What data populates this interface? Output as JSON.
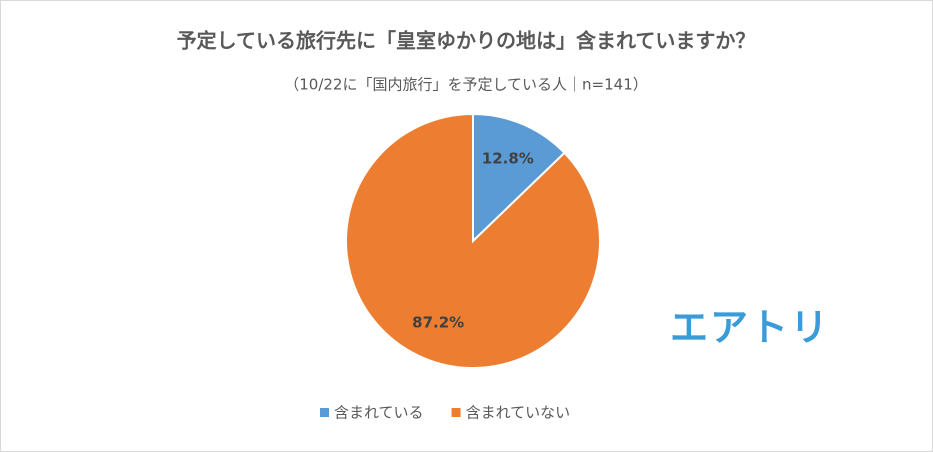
{
  "chart_data": {
    "type": "pie",
    "title": "予定している旅行先に「皇室ゆかりの地は」含まれていますか？",
    "subtitle": "（10/22に「国内旅行」を予定している人｜n=141）",
    "categories": [
      "含まれている",
      "含まれていない"
    ],
    "values": [
      12.8,
      87.2
    ],
    "value_labels": [
      "12.8%",
      "87.2%"
    ],
    "colors": [
      "#5b9bd5",
      "#ed7d31"
    ],
    "legend": "bottom"
  },
  "logo": "エアトリ"
}
